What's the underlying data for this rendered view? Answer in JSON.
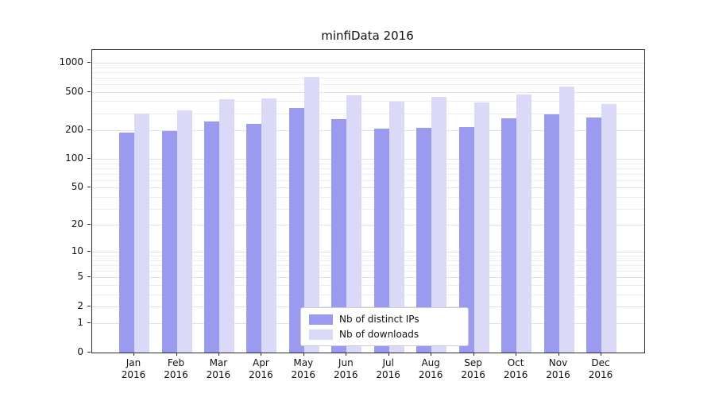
{
  "title": "minfiData 2016",
  "chart_data": {
    "type": "bar",
    "title": "minfiData 2016",
    "categories": [
      "Jan",
      "Feb",
      "Mar",
      "Apr",
      "May",
      "Jun",
      "Jul",
      "Aug",
      "Sep",
      "Oct",
      "Nov",
      "Dec"
    ],
    "year_label": "2016",
    "series": [
      {
        "name": "Nb of distinct IPs",
        "color": "#9a9aee",
        "values": [
          190,
          196,
          245,
          231,
          339,
          258,
          206,
          212,
          214,
          264,
          291,
          269
        ]
      },
      {
        "name": "Nb of downloads",
        "color": "#dadaf8",
        "values": [
          295,
          318,
          419,
          423,
          712,
          459,
          394,
          443,
          389,
          467,
          566,
          374
        ]
      }
    ],
    "yscale": "log1p",
    "yticks": [
      0,
      1,
      2,
      5,
      10,
      20,
      50,
      100,
      200,
      500,
      1000
    ],
    "ylim": [
      0,
      1100
    ],
    "xlabel": "",
    "ylabel": "",
    "grid": "horizontal",
    "legend_position": "lower-center",
    "axis_color": "#2b2b2b",
    "grid_color": "#ededed"
  }
}
